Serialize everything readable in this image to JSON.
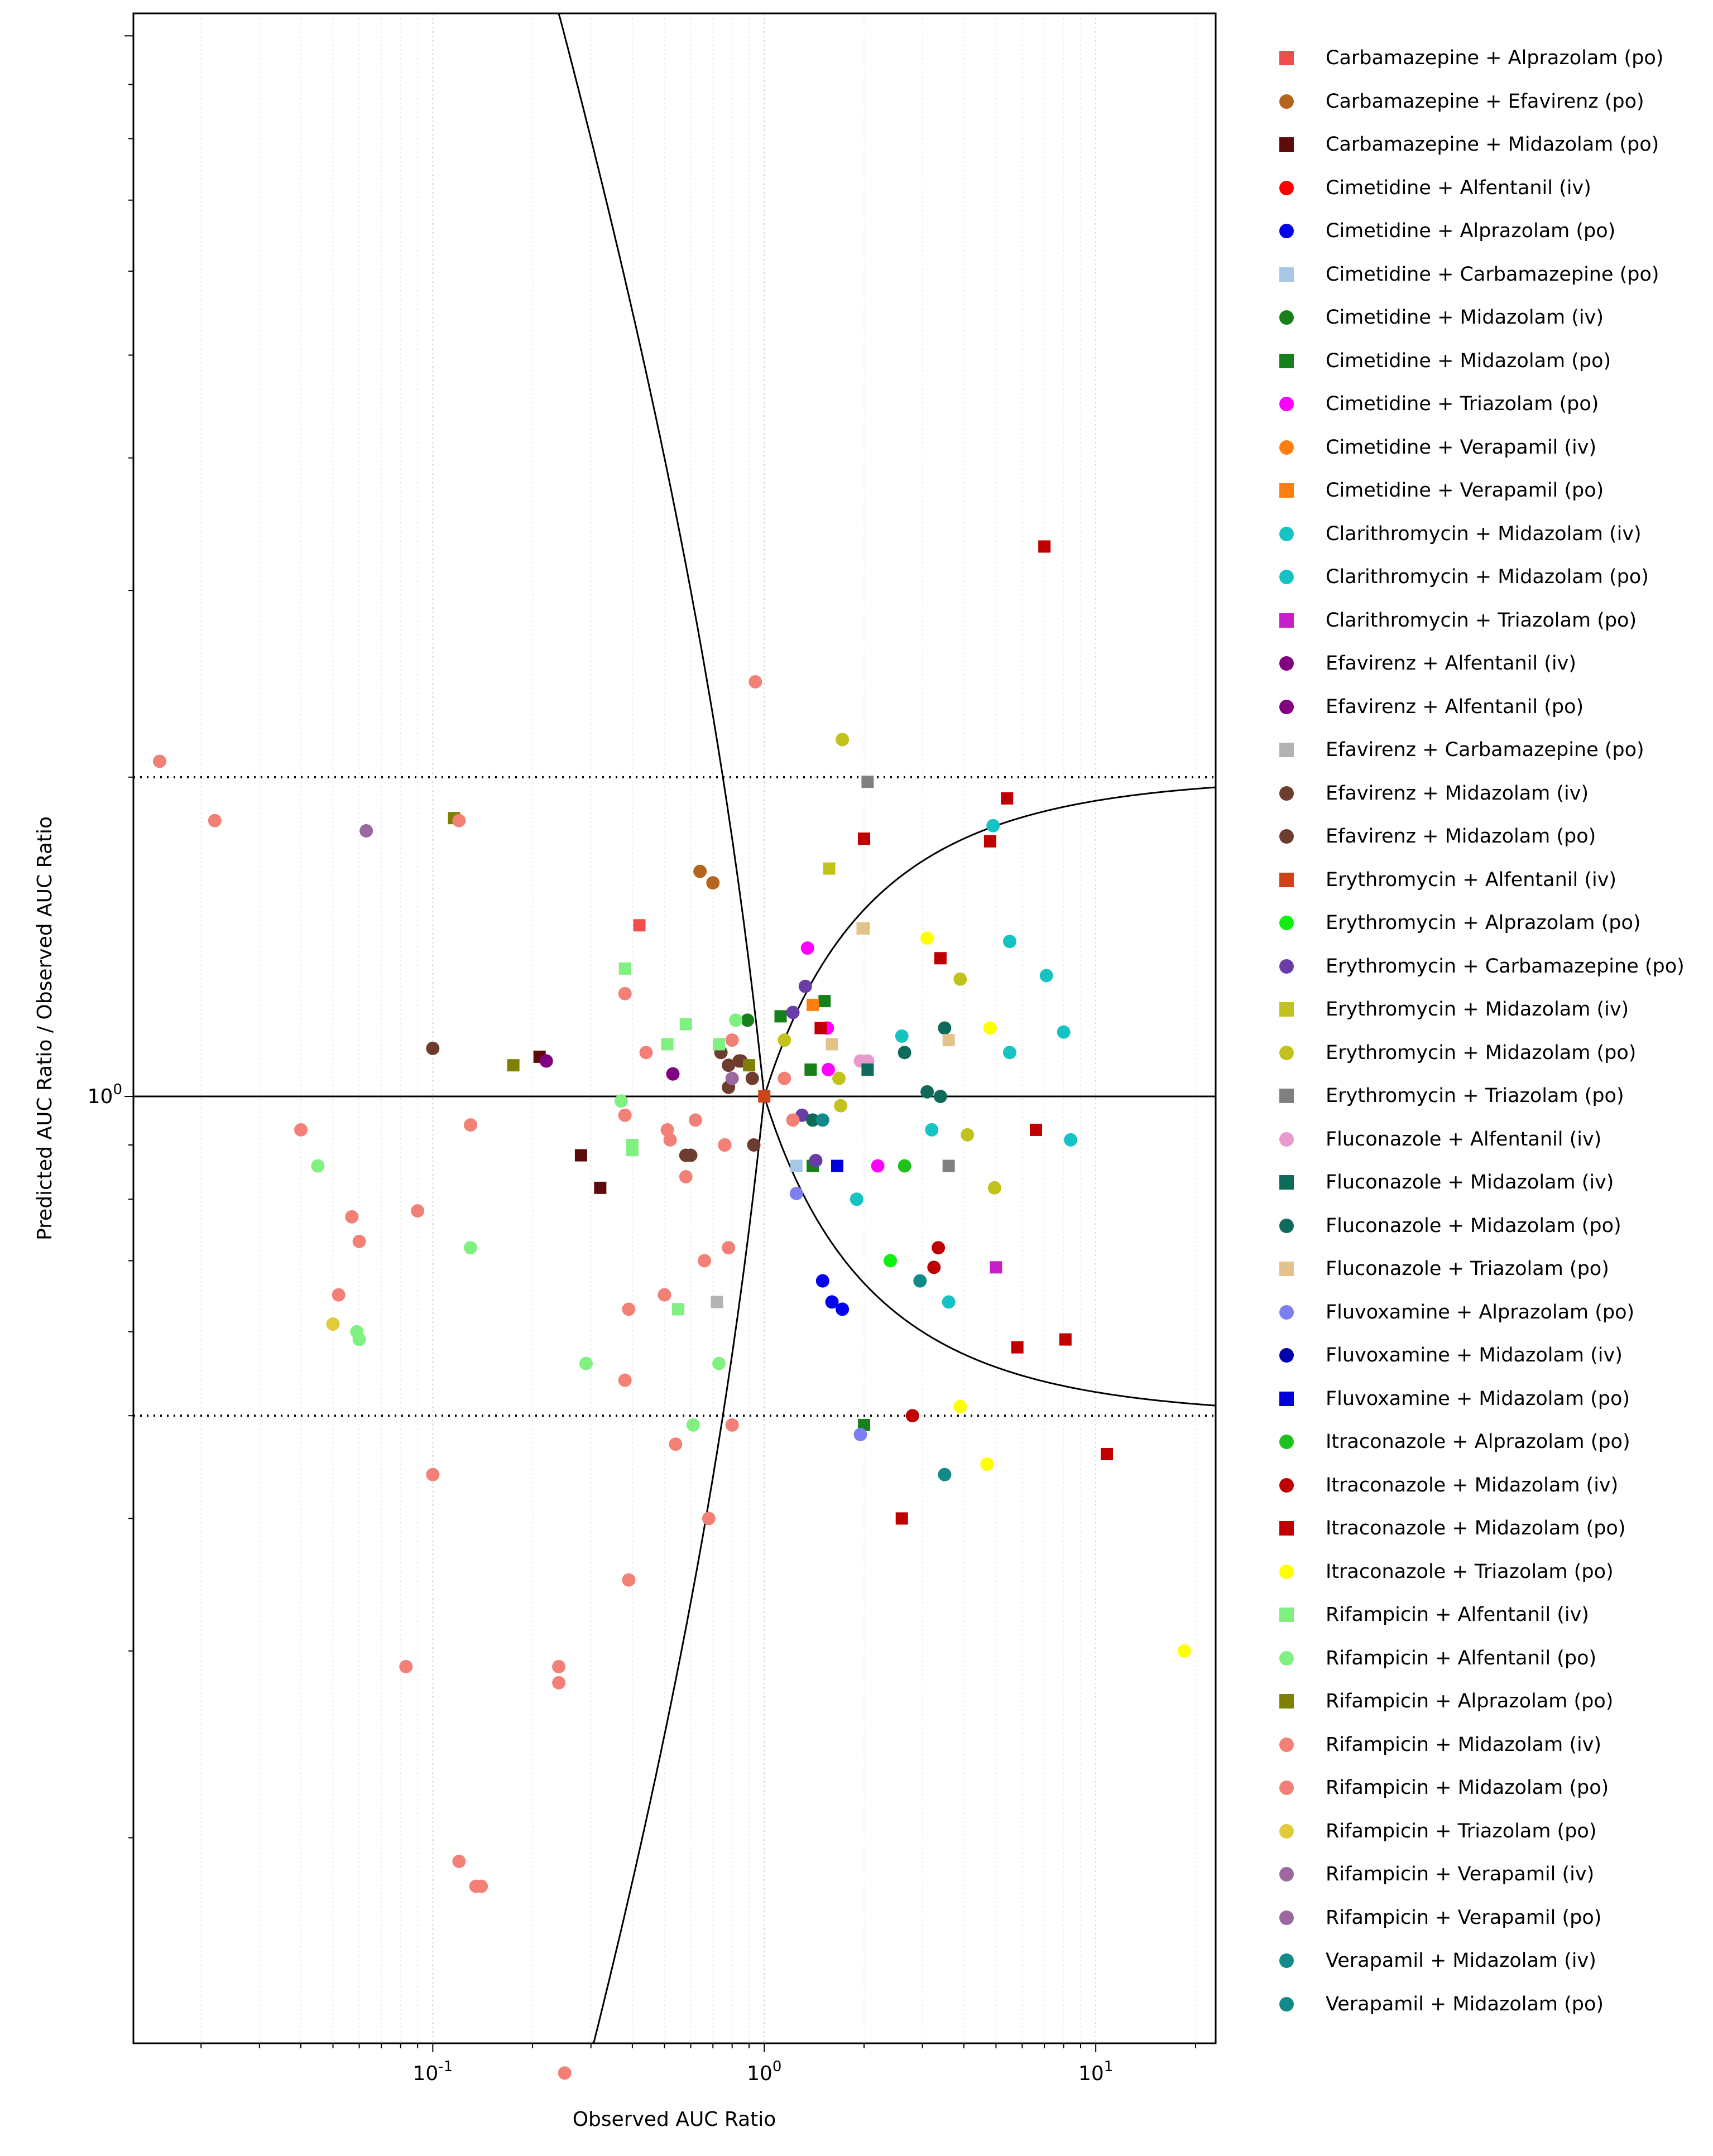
{
  "chart_data": {
    "type": "scatter",
    "xlabel": "Observed AUC Ratio",
    "ylabel": "Predicted AUC Ratio / Observed AUC Ratio",
    "x_scale": "log",
    "y_scale": "log",
    "xlim": [
      0.0125,
      23
    ],
    "ylim": [
      0.128,
      10.5
    ],
    "x_ticks": [
      {
        "value": 0.1,
        "label": "10^-1"
      },
      {
        "value": 1,
        "label": "10^0"
      },
      {
        "value": 10,
        "label": "10^1"
      }
    ],
    "y_ticks": [
      {
        "value": 1,
        "label": "10^0"
      }
    ],
    "grid": "minor vertical dotted",
    "reference_lines": [
      "y = 1 (solid)",
      "y = 2 and y = 0.5 (dotted)",
      "guest limits (solid curves)"
    ],
    "legend_position": "right",
    "series": [
      {
        "name": "Carbamazepine + Alprazolam (po)",
        "color": "#f24c4c",
        "marker": "square",
        "points": [
          [
            0.42,
            1.45
          ]
        ]
      },
      {
        "name": "Carbamazepine + Efavirenz (po)",
        "color": "#b5651d",
        "marker": "circle",
        "points": [
          [
            0.64,
            1.63
          ],
          [
            0.7,
            1.59
          ]
        ]
      },
      {
        "name": "Carbamazepine + Midazolam (po)",
        "color": "#5c0a0a",
        "marker": "square",
        "points": [
          [
            0.21,
            1.09
          ],
          [
            0.28,
            0.88
          ],
          [
            0.32,
            0.82
          ]
        ]
      },
      {
        "name": "Cimetidine + Alfentanil (iv)",
        "color": "#ff0000",
        "marker": "circle",
        "points": []
      },
      {
        "name": "Cimetidine + Alprazolam (po)",
        "color": "#0000ee",
        "marker": "circle",
        "points": [
          [
            1.5,
            0.67
          ],
          [
            1.6,
            0.64
          ],
          [
            1.72,
            0.63
          ]
        ]
      },
      {
        "name": "Cimetidine + Carbamazepine (po)",
        "color": "#a6c8e6",
        "marker": "square",
        "points": [
          [
            1.25,
            0.86
          ]
        ]
      },
      {
        "name": "Cimetidine + Midazolam (iv)",
        "color": "#17801a",
        "marker": "circle",
        "points": [
          [
            0.89,
            1.18
          ]
        ]
      },
      {
        "name": "Cimetidine + Midazolam (po)",
        "color": "#17801a",
        "marker": "square",
        "points": [
          [
            1.12,
            1.19
          ],
          [
            1.38,
            1.06
          ],
          [
            1.4,
            0.86
          ],
          [
            1.52,
            1.23
          ],
          [
            2.0,
            0.49
          ]
        ]
      },
      {
        "name": "Cimetidine + Triazolam (po)",
        "color": "#ff00ff",
        "marker": "circle",
        "points": [
          [
            1.35,
            1.38
          ],
          [
            1.55,
            1.16
          ],
          [
            1.56,
            1.06
          ],
          [
            2.2,
            0.86
          ]
        ]
      },
      {
        "name": "Cimetidine + Verapamil (iv)",
        "color": "#ff7f0e",
        "marker": "circle",
        "points": []
      },
      {
        "name": "Cimetidine + Verapamil (po)",
        "color": "#ff7f0e",
        "marker": "square",
        "points": [
          [
            1.4,
            1.22
          ]
        ]
      },
      {
        "name": "Clarithromycin + Midazolam (iv)",
        "color": "#16c3c3",
        "marker": "circle",
        "points": []
      },
      {
        "name": "Clarithromycin + Midazolam (po)",
        "color": "#16c3c3",
        "marker": "circle",
        "points": [
          [
            1.9,
            0.8
          ],
          [
            2.6,
            1.14
          ],
          [
            3.2,
            0.93
          ],
          [
            3.6,
            0.64
          ],
          [
            4.9,
            1.8
          ],
          [
            5.5,
            1.4
          ],
          [
            5.5,
            1.1
          ],
          [
            7.1,
            1.3
          ],
          [
            8.0,
            1.15
          ],
          [
            8.4,
            0.91
          ]
        ]
      },
      {
        "name": "Clarithromycin + Triazolam (po)",
        "color": "#c71ec7",
        "marker": "square",
        "points": [
          [
            5.0,
            0.69
          ]
        ]
      },
      {
        "name": "Efavirenz + Alfentanil (iv)",
        "color": "#800080",
        "marker": "circle",
        "points": [
          [
            0.22,
            1.08
          ]
        ]
      },
      {
        "name": "Efavirenz + Alfentanil (po)",
        "color": "#800080",
        "marker": "circle",
        "points": [
          [
            0.53,
            1.05
          ]
        ]
      },
      {
        "name": "Efavirenz + Carbamazepine (po)",
        "color": "#b3b3b3",
        "marker": "square",
        "points": [
          [
            0.72,
            0.64
          ]
        ]
      },
      {
        "name": "Efavirenz + Midazolam (iv)",
        "color": "#6e3b2f",
        "marker": "circle",
        "points": [
          [
            0.1,
            1.11
          ],
          [
            0.6,
            0.88
          ],
          [
            0.74,
            1.1
          ],
          [
            0.78,
            1.07
          ],
          [
            0.84,
            1.08
          ],
          [
            0.78,
            1.02
          ]
        ]
      },
      {
        "name": "Efavirenz + Midazolam (po)",
        "color": "#6e3b2f",
        "marker": "circle",
        "points": [
          [
            0.58,
            0.88
          ],
          [
            0.76,
            0.9
          ],
          [
            0.92,
            1.04
          ],
          [
            0.93,
            0.9
          ],
          [
            0.85,
            1.08
          ]
        ]
      },
      {
        "name": "Erythromycin + Alfentanil (iv)",
        "color": "#cc4418",
        "marker": "square",
        "points": [
          [
            1.0,
            1.0
          ]
        ]
      },
      {
        "name": "Erythromycin + Alprazolam (po)",
        "color": "#11ee11",
        "marker": "circle",
        "points": [
          [
            2.4,
            0.7
          ]
        ]
      },
      {
        "name": "Erythromycin + Carbamazepine (po)",
        "color": "#6a3ca8",
        "marker": "circle",
        "points": [
          [
            1.22,
            1.2
          ],
          [
            1.33,
            1.27
          ],
          [
            1.43,
            0.87
          ],
          [
            1.3,
            0.96
          ]
        ]
      },
      {
        "name": "Erythromycin + Midazolam (iv)",
        "color": "#c2c21c",
        "marker": "square",
        "points": [
          [
            1.57,
            1.64
          ],
          [
            1.99,
            1.44
          ]
        ]
      },
      {
        "name": "Erythromycin + Midazolam (po)",
        "color": "#c2c21c",
        "marker": "circle",
        "points": [
          [
            1.15,
            1.13
          ],
          [
            1.68,
            1.04
          ],
          [
            1.7,
            0.98
          ],
          [
            1.72,
            2.17
          ],
          [
            3.9,
            1.29
          ],
          [
            4.1,
            0.92
          ],
          [
            4.95,
            0.82
          ]
        ]
      },
      {
        "name": "Erythromycin + Triazolam (po)",
        "color": "#808080",
        "marker": "square",
        "points": [
          [
            2.05,
            1.98
          ],
          [
            3.6,
            0.86
          ]
        ]
      },
      {
        "name": "Fluconazole + Alfentanil (iv)",
        "color": "#e79bcc",
        "marker": "circle",
        "points": [
          [
            1.95,
            1.08
          ],
          [
            2.05,
            1.08
          ]
        ]
      },
      {
        "name": "Fluconazole + Midazolam (iv)",
        "color": "#0e6b5b",
        "marker": "square",
        "points": [
          [
            2.05,
            1.06
          ]
        ]
      },
      {
        "name": "Fluconazole + Midazolam (po)",
        "color": "#0e6b5b",
        "marker": "circle",
        "points": [
          [
            1.4,
            0.95
          ],
          [
            2.65,
            1.1
          ],
          [
            3.1,
            1.01
          ],
          [
            3.4,
            1.0
          ],
          [
            3.5,
            1.16
          ]
        ]
      },
      {
        "name": "Fluconazole + Triazolam (po)",
        "color": "#e3c28b",
        "marker": "square",
        "points": [
          [
            1.6,
            1.12
          ],
          [
            1.98,
            1.44
          ],
          [
            3.6,
            1.13
          ]
        ]
      },
      {
        "name": "Fluvoxamine + Alprazolam (po)",
        "color": "#7b7ff0",
        "marker": "circle",
        "points": [
          [
            1.25,
            0.81
          ],
          [
            1.95,
            0.48
          ]
        ]
      },
      {
        "name": "Fluvoxamine + Midazolam (iv)",
        "color": "#0000aa",
        "marker": "circle",
        "points": []
      },
      {
        "name": "Fluvoxamine + Midazolam (po)",
        "color": "#0000dd",
        "marker": "square",
        "points": [
          [
            1.66,
            0.86
          ]
        ]
      },
      {
        "name": "Itraconazole + Alprazolam (po)",
        "color": "#1ec21e",
        "marker": "circle",
        "points": [
          [
            2.65,
            0.86
          ]
        ]
      },
      {
        "name": "Itraconazole + Midazolam (iv)",
        "color": "#c00000",
        "marker": "circle",
        "points": [
          [
            2.8,
            0.5
          ],
          [
            3.25,
            0.69
          ],
          [
            3.35,
            0.72
          ]
        ]
      },
      {
        "name": "Itraconazole + Midazolam (po)",
        "color": "#c00000",
        "marker": "square",
        "points": [
          [
            1.48,
            1.16
          ],
          [
            2.0,
            1.75
          ],
          [
            2.6,
            0.4
          ],
          [
            3.4,
            1.35
          ],
          [
            4.8,
            1.74
          ],
          [
            5.4,
            1.91
          ],
          [
            5.8,
            0.58
          ],
          [
            6.6,
            0.93
          ],
          [
            7.0,
            3.3
          ],
          [
            8.1,
            0.59
          ],
          [
            10.8,
            0.46
          ]
        ]
      },
      {
        "name": "Itraconazole + Triazolam (po)",
        "color": "#ffff00",
        "marker": "circle",
        "points": [
          [
            3.1,
            1.41
          ],
          [
            3.9,
            0.51
          ],
          [
            4.7,
            0.45
          ],
          [
            4.8,
            1.16
          ],
          [
            18.5,
            0.3
          ]
        ]
      },
      {
        "name": "Rifampicin + Alfentanil (iv)",
        "color": "#80f080",
        "marker": "square",
        "points": [
          [
            0.38,
            1.32
          ],
          [
            0.4,
            0.9
          ],
          [
            0.4,
            0.89
          ],
          [
            0.51,
            1.12
          ],
          [
            0.58,
            1.17
          ],
          [
            0.73,
            1.12
          ],
          [
            0.55,
            0.63
          ]
        ]
      },
      {
        "name": "Rifampicin + Alfentanil (po)",
        "color": "#80f080",
        "marker": "circle",
        "points": [
          [
            0.045,
            0.86
          ],
          [
            0.059,
            0.6
          ],
          [
            0.06,
            0.59
          ],
          [
            0.13,
            0.72
          ],
          [
            0.29,
            0.56
          ],
          [
            0.37,
            0.99
          ],
          [
            0.61,
            0.49
          ],
          [
            0.73,
            0.56
          ],
          [
            0.82,
            1.18
          ]
        ]
      },
      {
        "name": "Rifampicin + Alprazolam (po)",
        "color": "#808000",
        "marker": "square",
        "points": [
          [
            0.116,
            1.83
          ],
          [
            0.175,
            1.07
          ],
          [
            0.9,
            1.07
          ]
        ]
      },
      {
        "name": "Rifampicin + Midazolam (iv)",
        "color": "#f38077",
        "marker": "circle",
        "points": [
          [
            0.015,
            2.07
          ],
          [
            0.022,
            1.82
          ],
          [
            0.04,
            0.93
          ],
          [
            0.057,
            0.77
          ],
          [
            0.06,
            0.73
          ],
          [
            0.052,
            0.65
          ],
          [
            0.09,
            0.78
          ],
          [
            0.1,
            0.44
          ],
          [
            0.12,
            1.82
          ],
          [
            0.13,
            0.94
          ],
          [
            0.083,
            0.29
          ],
          [
            0.24,
            0.29
          ],
          [
            0.24,
            0.28
          ],
          [
            0.25,
            0.12
          ],
          [
            0.38,
            0.54
          ],
          [
            0.38,
            0.96
          ],
          [
            0.39,
            0.35
          ],
          [
            0.38,
            1.25
          ]
        ]
      },
      {
        "name": "Rifampicin + Midazolam (po)",
        "color": "#f38077",
        "marker": "circle",
        "points": [
          [
            0.12,
            0.19
          ],
          [
            0.135,
            0.18
          ],
          [
            0.14,
            0.18
          ],
          [
            0.39,
            0.63
          ],
          [
            0.44,
            1.1
          ],
          [
            0.5,
            0.65
          ],
          [
            0.51,
            0.93
          ],
          [
            0.52,
            0.91
          ],
          [
            0.54,
            0.47
          ],
          [
            0.58,
            0.84
          ],
          [
            0.62,
            0.95
          ],
          [
            0.66,
            0.7
          ],
          [
            0.68,
            0.4
          ],
          [
            0.76,
            0.9
          ],
          [
            0.78,
            0.72
          ],
          [
            0.8,
            0.49
          ],
          [
            0.8,
            1.13
          ],
          [
            0.94,
            2.46
          ],
          [
            1.15,
            1.04
          ],
          [
            1.22,
            0.95
          ]
        ]
      },
      {
        "name": "Rifampicin + Triazolam (po)",
        "color": "#e2cb3a",
        "marker": "circle",
        "points": [
          [
            0.05,
            0.61
          ]
        ]
      },
      {
        "name": "Rifampicin + Verapamil (iv)",
        "color": "#9c68a0",
        "marker": "circle",
        "points": [
          [
            0.063,
            1.78
          ]
        ]
      },
      {
        "name": "Rifampicin + Verapamil (po)",
        "color": "#9c68a0",
        "marker": "circle",
        "points": [
          [
            0.8,
            1.04
          ]
        ]
      },
      {
        "name": "Verapamil + Midazolam (iv)",
        "color": "#138a8a",
        "marker": "circle",
        "points": [
          [
            2.95,
            0.67
          ],
          [
            3.5,
            0.44
          ]
        ]
      },
      {
        "name": "Verapamil + Midazolam (po)",
        "color": "#138a8a",
        "marker": "circle",
        "points": [
          [
            1.5,
            0.95
          ]
        ]
      }
    ]
  }
}
